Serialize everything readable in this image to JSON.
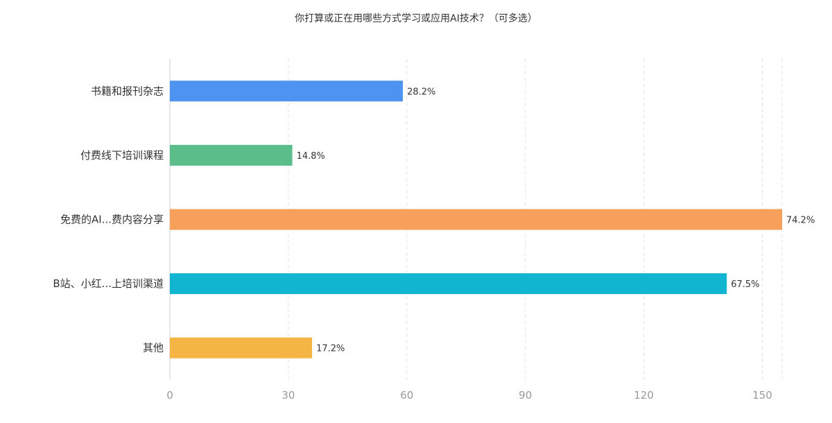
{
  "chart_data": {
    "type": "bar",
    "orientation": "horizontal",
    "title": "你打算或正在用哪些方式学习或应用AI技术？（可多选）",
    "xlabel": "",
    "ylabel": "",
    "categories": [
      "书籍和报刊杂志",
      "付费线下培训课程",
      "免费的AI...费内容分享",
      "B站、小红...上培训渠道",
      "其他"
    ],
    "values": [
      59,
      31,
      155,
      141,
      36
    ],
    "data_labels": [
      "28.2%",
      "14.8%",
      "74.2%",
      "67.5%",
      "17.2%"
    ],
    "colors": [
      "#4F93F0",
      "#5BBD8A",
      "#F6A05C",
      "#12B5CF",
      "#F5B545"
    ],
    "xlim": [
      0,
      155
    ],
    "xticks": [
      "0",
      "30",
      "60",
      "90",
      "120",
      "150"
    ],
    "grid": true
  }
}
